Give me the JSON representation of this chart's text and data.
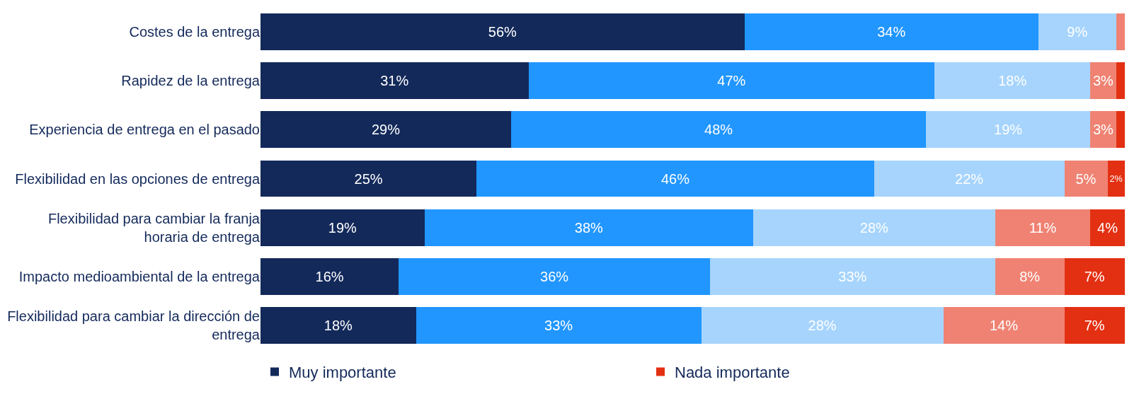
{
  "chart_data": {
    "type": "bar",
    "orientation": "horizontal",
    "stacked": true,
    "legend": "bottom",
    "categories": [
      "Costes de la entrega",
      "Rapidez de la entrega",
      "Experiencia de entrega en el pasado",
      "Flexibilidad en las opciones de entrega",
      "Flexibilidad para cambiar la franja horaria de entrega",
      "Impacto medioambiental de la entrega",
      "Flexibilidad para cambiar la dirección de entrega"
    ],
    "series": [
      {
        "name": "Muy importante",
        "color": "#13295a",
        "values": [
          56,
          31,
          29,
          25,
          19,
          16,
          18
        ],
        "value_labels": [
          "56%",
          "31%",
          "29%",
          "25%",
          "19%",
          "16%",
          "18%"
        ]
      },
      {
        "color": "#2196ff",
        "values": [
          34,
          47,
          48,
          46,
          38,
          36,
          33
        ],
        "value_labels": [
          "34%",
          "47%",
          "48%",
          "46%",
          "38%",
          "36%",
          "33%"
        ]
      },
      {
        "color": "#a6d4fd",
        "values": [
          9,
          18,
          19,
          22,
          28,
          33,
          28
        ],
        "value_labels": [
          "9%",
          "18%",
          "19%",
          "22%",
          "28%",
          "33%",
          "28%"
        ]
      },
      {
        "color": "#ef8272",
        "values": [
          1,
          3,
          3,
          5,
          11,
          8,
          14
        ],
        "value_labels": [
          null,
          "3%",
          "3%",
          "5%",
          "11%",
          "8%",
          "14%"
        ]
      },
      {
        "name": "Nada importante",
        "color": "#e33012",
        "values": [
          null,
          1,
          1,
          2,
          4,
          7,
          7
        ],
        "value_labels": [
          null,
          null,
          null,
          "2%",
          "4%",
          "7%",
          "7%"
        ]
      }
    ]
  }
}
